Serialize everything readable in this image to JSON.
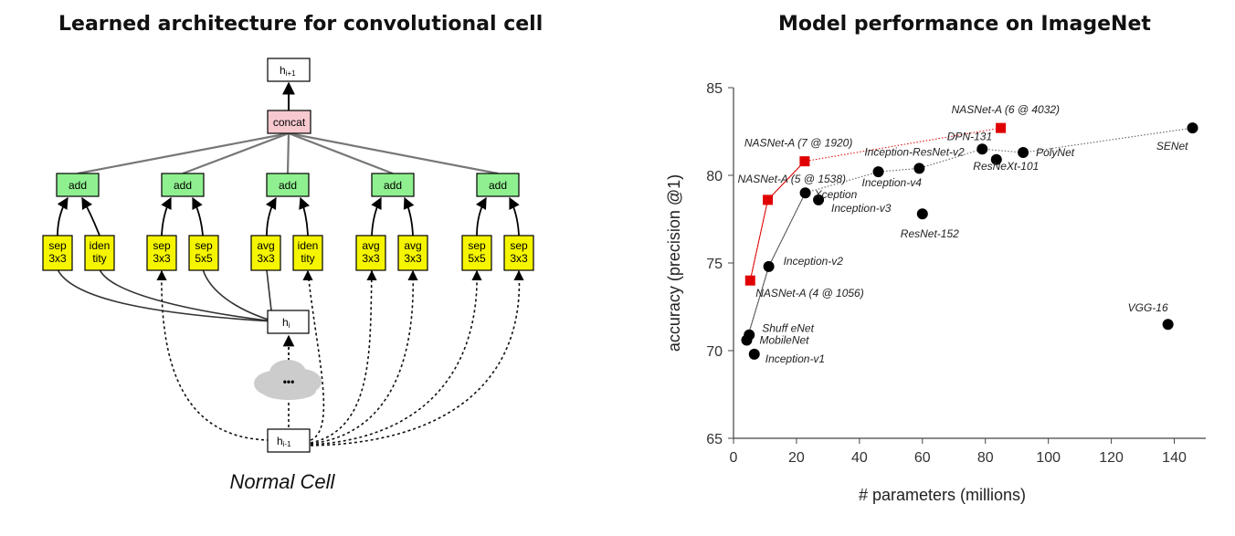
{
  "left": {
    "title": "Learned architecture for convolutional cell",
    "caption": "Normal Cell",
    "output_node": {
      "main": "h",
      "sub": "i+1"
    },
    "concat_label": "concat",
    "adds": [
      "add",
      "add",
      "add",
      "add",
      "add"
    ],
    "ops": [
      [
        "sep",
        "3x3"
      ],
      [
        "iden",
        "tity"
      ],
      [
        "sep",
        "3x3"
      ],
      [
        "sep",
        "5x5"
      ],
      [
        "avg",
        "3x3"
      ],
      [
        "iden",
        "tity"
      ],
      [
        "avg",
        "3x3"
      ],
      [
        "avg",
        "3x3"
      ],
      [
        "sep",
        "5x5"
      ],
      [
        "sep",
        "3x3"
      ]
    ],
    "hi": {
      "main": "h",
      "sub": "i"
    },
    "hprev": {
      "main": "h",
      "sub": "i-1"
    },
    "ellipsis": "•••",
    "colors": {
      "add": "#8ff08f",
      "op": "#f5f500",
      "concat": "#f7c9cf",
      "node": "#ffffff",
      "cloud": "#cccccc"
    }
  },
  "right": {
    "title": "Model performance on ImageNet"
  },
  "chart_data": {
    "type": "scatter",
    "xlabel": "# parameters (millions)",
    "ylabel": "accuracy (precision @1)",
    "xlim": [
      0,
      150
    ],
    "ylim": [
      65,
      85
    ],
    "xticks": [
      0,
      20,
      40,
      60,
      80,
      100,
      120,
      140
    ],
    "yticks": [
      65,
      70,
      75,
      80,
      85
    ],
    "series": [
      {
        "marker": "circle",
        "color": "#000000",
        "points": [
          {
            "label": "Inception-v1",
            "x": 6.6,
            "y": 69.8
          },
          {
            "label": "MobileNet",
            "x": 4.2,
            "y": 70.6
          },
          {
            "label": "Shuff eNet",
            "x": 5.0,
            "y": 70.9
          },
          {
            "label": "Inception-v2",
            "x": 11.2,
            "y": 74.8
          },
          {
            "label": "Inception-v3",
            "x": 27.0,
            "y": 78.6
          },
          {
            "label": "Xception",
            "x": 22.8,
            "y": 79.0
          },
          {
            "label": "Inception-v4",
            "x": 46.0,
            "y": 80.2
          },
          {
            "label": "Inception-ResNet-v2",
            "x": 59.0,
            "y": 80.4
          },
          {
            "label": "ResNet-152",
            "x": 60.0,
            "y": 77.8
          },
          {
            "label": "ResNeXt-101",
            "x": 79.0,
            "y": 81.5
          },
          {
            "label": "DPN-131",
            "x": 83.5,
            "y": 80.9
          },
          {
            "label": "PolyNet",
            "x": 92.0,
            "y": 81.3
          },
          {
            "label": "SENet",
            "x": 145.8,
            "y": 82.7
          },
          {
            "label": "VGG-16",
            "x": 138.0,
            "y": 71.5
          }
        ]
      },
      {
        "marker": "square",
        "color": "#e00000",
        "points": [
          {
            "label": "NASNet-A (4 @ 1056)",
            "x": 5.3,
            "y": 74.0
          },
          {
            "label": "NASNet-A (5 @ 1538)",
            "x": 10.9,
            "y": 78.6
          },
          {
            "label": "NASNet-A (7 @ 1920)",
            "x": 22.6,
            "y": 80.8
          },
          {
            "label": "NASNet-A (6 @ 4032)",
            "x": 84.9,
            "y": 82.7
          }
        ]
      }
    ]
  }
}
